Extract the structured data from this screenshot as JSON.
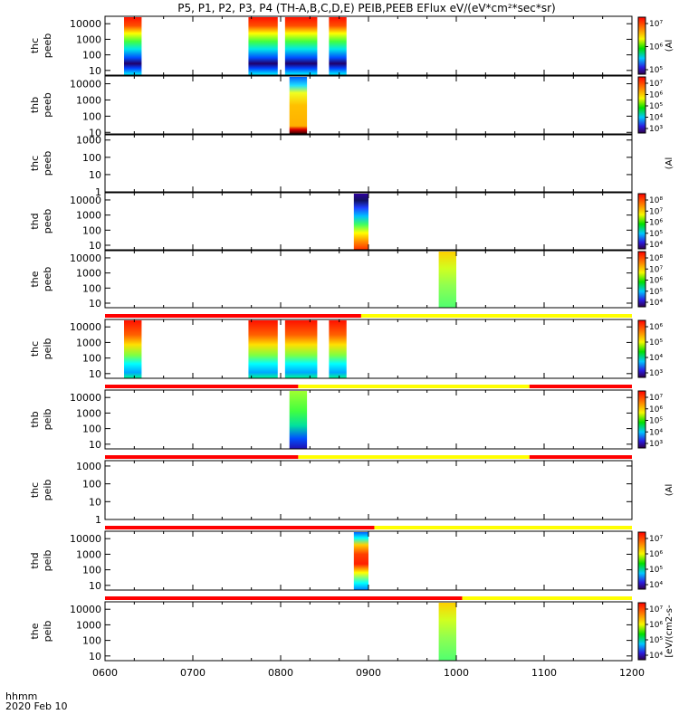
{
  "title": "P5, P1, P2, P3, P4 (TH-A,B,C,D,E) PEIB,PEEB EFlux eV/(eV*cm²*sec*sr)",
  "footer": {
    "time_label": "hhmm",
    "date_label": "2020 Feb 10"
  },
  "colors": {
    "status_red": "#ff0000",
    "status_yellow": "#ffff00",
    "axis": "#000000"
  },
  "chart_data": {
    "type": "heatmap",
    "x_axis": {
      "unit": "hhmm",
      "range": [
        "0600",
        "1200"
      ],
      "ticks": [
        "0600",
        "0700",
        "0800",
        "0900",
        "1000",
        "1100",
        "1200"
      ]
    },
    "panels": [
      {
        "label1": "thc",
        "label2": "peeb",
        "yticks": [
          "10",
          "100",
          "1000",
          "10000"
        ],
        "ylim": [
          5,
          30000
        ],
        "log": true,
        "colorbar_ticks": [
          "10⁵",
          "10⁶",
          "10⁷"
        ],
        "colorbar_label": "(Al",
        "blocks": [
          {
            "x0": "0613",
            "x1": "0625",
            "palette": "A"
          },
          {
            "x0": "0738",
            "x1": "0758",
            "palette": "A"
          },
          {
            "x0": "0803",
            "x1": "0825",
            "palette": "A"
          },
          {
            "x0": "0833",
            "x1": "0845",
            "palette": "A"
          }
        ]
      },
      {
        "label1": "thb",
        "label2": "peeb",
        "yticks": [
          "10",
          "100",
          "1000",
          "10000"
        ],
        "ylim": [
          8,
          30000
        ],
        "log": true,
        "colorbar_ticks": [
          "10³",
          "10⁴",
          "10⁵",
          "10⁶",
          "10⁷"
        ],
        "colorbar_label": "",
        "blocks": [
          {
            "x0": "0806",
            "x1": "0818",
            "palette": "B"
          }
        ]
      },
      {
        "label1": "thc",
        "label2": "peeb",
        "yticks": [
          "1",
          "10",
          "100",
          "1000"
        ],
        "ylim": [
          1,
          2000
        ],
        "log": true,
        "colorbar_ticks": [],
        "colorbar_label": "(Al",
        "blocks": []
      },
      {
        "label1": "thd",
        "label2": "peeb",
        "yticks": [
          "10",
          "100",
          "1000",
          "10000"
        ],
        "ylim": [
          5,
          30000
        ],
        "log": true,
        "colorbar_ticks": [
          "10⁴",
          "10⁵",
          "10⁶",
          "10⁷",
          "10⁸"
        ],
        "colorbar_label": "",
        "blocks": [
          {
            "x0": "0850",
            "x1": "0900",
            "palette": "C"
          }
        ]
      },
      {
        "label1": "the",
        "label2": "peeb",
        "yticks": [
          "10",
          "100",
          "1000",
          "10000"
        ],
        "ylim": [
          5,
          30000
        ],
        "log": true,
        "colorbar_ticks": [
          "10⁴",
          "10⁵",
          "10⁶",
          "10⁷",
          "10⁸"
        ],
        "colorbar_label": "",
        "blocks": [
          {
            "x0": "0948",
            "x1": "0960",
            "palette": "D"
          }
        ]
      },
      {
        "label1": "thc",
        "label2": "peib",
        "yticks": [
          "10",
          "100",
          "1000",
          "10000"
        ],
        "ylim": [
          5,
          30000
        ],
        "log": true,
        "colorbar_ticks": [
          "10³",
          "10⁴",
          "10⁵",
          "10⁶"
        ],
        "colorbar_label": "",
        "blocks": [
          {
            "x0": "0613",
            "x1": "0625",
            "palette": "E"
          },
          {
            "x0": "0738",
            "x1": "0758",
            "palette": "E"
          },
          {
            "x0": "0803",
            "x1": "0825",
            "palette": "E"
          },
          {
            "x0": "0833",
            "x1": "0845",
            "palette": "E"
          }
        ]
      },
      {
        "label1": "thb",
        "label2": "peib",
        "yticks": [
          "10",
          "100",
          "1000",
          "10000"
        ],
        "ylim": [
          5,
          30000
        ],
        "log": true,
        "colorbar_ticks": [
          "10³",
          "10⁴",
          "10⁵",
          "10⁶",
          "10⁷"
        ],
        "colorbar_label": "",
        "blocks": [
          {
            "x0": "0806",
            "x1": "0818",
            "palette": "F"
          }
        ]
      },
      {
        "label1": "thc",
        "label2": "peib",
        "yticks": [
          "1",
          "10",
          "100",
          "1000"
        ],
        "ylim": [
          1,
          2000
        ],
        "log": true,
        "colorbar_ticks": [],
        "colorbar_label": "(Al",
        "blocks": []
      },
      {
        "label1": "thd",
        "label2": "peib",
        "yticks": [
          "10",
          "100",
          "1000",
          "10000"
        ],
        "ylim": [
          5,
          30000
        ],
        "log": true,
        "colorbar_ticks": [
          "10⁴",
          "10⁵",
          "10⁶",
          "10⁷"
        ],
        "colorbar_label": "",
        "blocks": [
          {
            "x0": "0850",
            "x1": "0900",
            "palette": "G"
          }
        ]
      },
      {
        "label1": "the",
        "label2": "peib",
        "yticks": [
          "10",
          "100",
          "1000",
          "10000"
        ],
        "ylim": [
          5,
          30000
        ],
        "log": true,
        "colorbar_ticks": [
          "10⁴",
          "10⁵",
          "10⁶",
          "10⁷"
        ],
        "colorbar_label": "[eV/(cm2-s-",
        "blocks": [
          {
            "x0": "0948",
            "x1": "0960",
            "palette": "D"
          }
        ]
      }
    ],
    "status_bars": [
      {
        "before_panel": 5,
        "segments": [
          {
            "x0": "0600",
            "x1": "0855",
            "color": "red"
          },
          {
            "x0": "0855",
            "x1": "1200",
            "color": "yellow"
          }
        ]
      },
      {
        "before_panel": 6,
        "segments": [
          {
            "x0": "0600",
            "x1": "0812",
            "color": "red"
          },
          {
            "x0": "0812",
            "x1": "1050",
            "color": "yellow"
          },
          {
            "x0": "1050",
            "x1": "1200",
            "color": "red"
          }
        ]
      },
      {
        "before_panel": 7,
        "segments": [
          {
            "x0": "0600",
            "x1": "0812",
            "color": "red"
          },
          {
            "x0": "0812",
            "x1": "1050",
            "color": "yellow"
          },
          {
            "x0": "1050",
            "x1": "1200",
            "color": "red"
          }
        ]
      },
      {
        "before_panel": 8,
        "segments": [
          {
            "x0": "0600",
            "x1": "0904",
            "color": "red"
          },
          {
            "x0": "0904",
            "x1": "1200",
            "color": "yellow"
          }
        ]
      },
      {
        "before_panel": 9,
        "segments": [
          {
            "x0": "0600",
            "x1": "1004",
            "color": "red"
          },
          {
            "x0": "1004",
            "x1": "1200",
            "color": "yellow"
          }
        ]
      }
    ]
  }
}
